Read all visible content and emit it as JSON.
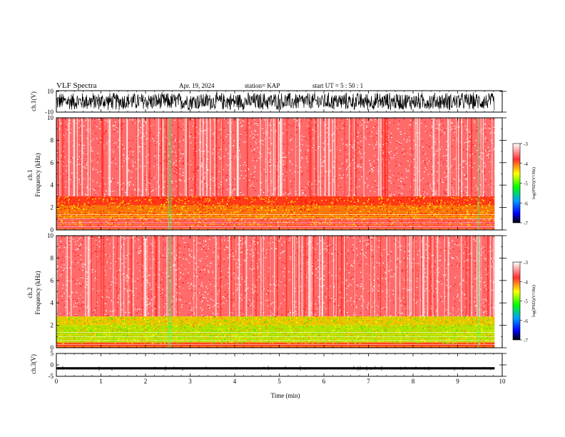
{
  "header": {
    "title": "VLF Spectra",
    "date": "Apr. 19, 2024",
    "station": "station= KAP",
    "start": "start  UT =   5 : 50 : 1"
  },
  "colors": {
    "colormap": [
      "#ffffff",
      "#ff2020",
      "#ffff00",
      "#00ff00",
      "#00a0ff",
      "#0000ff",
      "#000000"
    ],
    "trace": "#000000"
  },
  "chart_data": [
    {
      "type": "line",
      "name": "ch1-waveform",
      "ylabel": "ch.1(V)",
      "ylim": [
        -10,
        10
      ],
      "yticks": [
        "10",
        "-10"
      ],
      "description_range_estimate": [
        -6,
        6
      ],
      "xlim": [
        0,
        10
      ]
    },
    {
      "type": "heatmap",
      "name": "ch1-spectrogram",
      "ylabel": "ch.1\nFrequency (kHz)",
      "ylim": [
        0,
        10
      ],
      "yticks": [
        0,
        2,
        4,
        6,
        8,
        10
      ],
      "xlim": [
        0,
        10
      ],
      "data_extent_min": 9.83,
      "colorbar": {
        "label": "log(PSD)(V²/Hz)",
        "ticks": [
          "-3",
          "-4",
          "-5",
          "-6",
          "-7"
        ],
        "range": [
          -7,
          -3
        ]
      },
      "bands": [
        {
          "freq_kHz": [
            3.0,
            10.0
          ],
          "level": "red/white (about -3 to -4)"
        },
        {
          "freq_kHz": [
            1.0,
            3.0
          ],
          "level": "red/yellow (about -4)"
        },
        {
          "freq_kHz": [
            0.0,
            1.0
          ],
          "level": "red/white"
        }
      ]
    },
    {
      "type": "heatmap",
      "name": "ch2-spectrogram",
      "ylabel": "ch.2\nFrequency (kHz)",
      "ylim": [
        0,
        10
      ],
      "yticks": [
        0,
        2,
        4,
        6,
        8,
        10
      ],
      "xlim": [
        0,
        10
      ],
      "colorbar": {
        "label": "log(PSD)(V²/Hz)",
        "ticks": [
          "-3",
          "-4",
          "-5",
          "-6",
          "-7"
        ],
        "range": [
          -7,
          -3
        ]
      },
      "bands": [
        {
          "freq_kHz": [
            2.8,
            10.0
          ],
          "level": "red/white (about -3 to -4)"
        },
        {
          "freq_kHz": [
            0.5,
            2.8
          ],
          "level": "yellow/green (about -4.5 to -5)"
        },
        {
          "freq_kHz": [
            0.0,
            0.5
          ],
          "level": "red/yellow"
        }
      ]
    },
    {
      "type": "line",
      "name": "ch3-waveform",
      "ylabel": "ch.3(V)",
      "ylim": [
        -5,
        5
      ],
      "yticks": [
        "5",
        "0",
        "-5"
      ],
      "level_estimate": [
        -2.0,
        -1.0
      ],
      "xlim": [
        0,
        10
      ],
      "xlabel": "Time  (min)",
      "xticks": [
        "0",
        "1",
        "2",
        "3",
        "4",
        "5",
        "6",
        "7",
        "8",
        "9",
        "10"
      ]
    }
  ]
}
